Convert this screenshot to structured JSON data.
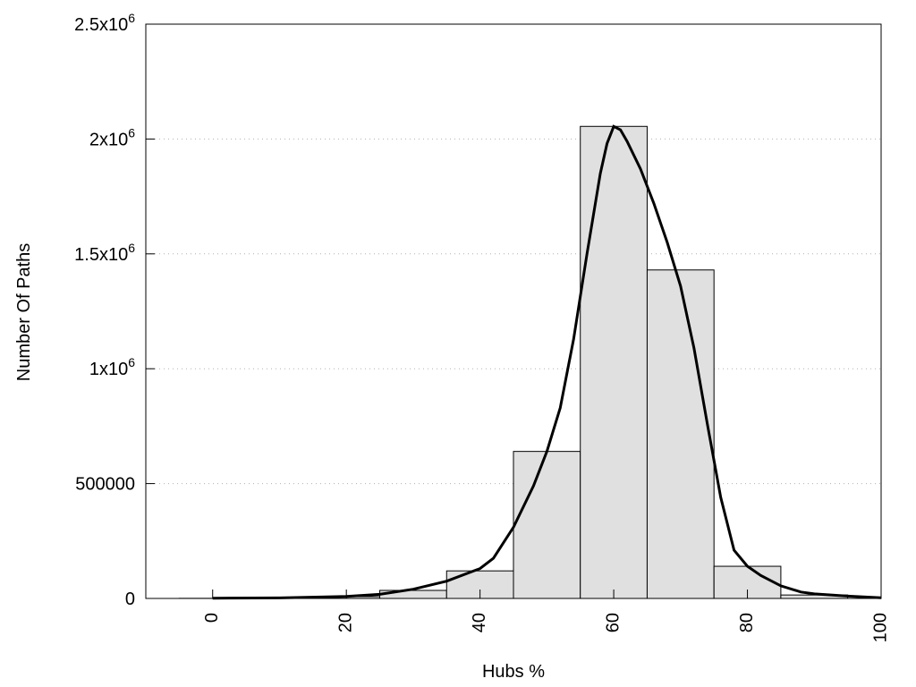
{
  "chart_data": {
    "type": "bar",
    "xlabel": "Hubs %",
    "ylabel": "Number Of Paths",
    "xlim": [
      -10,
      100
    ],
    "ylim": [
      0,
      2500000
    ],
    "x_ticks": [
      0,
      20,
      40,
      60,
      80,
      100
    ],
    "y_ticks": [
      {
        "value": 0,
        "base": "0",
        "sup": ""
      },
      {
        "value": 500000,
        "base": "500000",
        "sup": ""
      },
      {
        "value": 1000000,
        "base": "1x10",
        "sup": "6"
      },
      {
        "value": 1500000,
        "base": "1.5x10",
        "sup": "6"
      },
      {
        "value": 2000000,
        "base": "2x10",
        "sup": "6"
      },
      {
        "value": 2500000,
        "base": "2.5x10",
        "sup": "6"
      }
    ],
    "grid": "horizontal-dotted",
    "bar_width": 10,
    "bars": [
      {
        "x": 0,
        "value": 500
      },
      {
        "x": 10,
        "value": 2000
      },
      {
        "x": 20,
        "value": 8000
      },
      {
        "x": 30,
        "value": 35000
      },
      {
        "x": 40,
        "value": 120000
      },
      {
        "x": 50,
        "value": 640000
      },
      {
        "x": 60,
        "value": 2055000
      },
      {
        "x": 70,
        "value": 1430000
      },
      {
        "x": 80,
        "value": 140000
      },
      {
        "x": 90,
        "value": 15000
      }
    ],
    "curve": {
      "x": [
        0,
        10,
        20,
        25,
        30,
        35,
        40,
        42,
        45,
        48,
        50,
        52,
        54,
        56,
        58,
        59,
        60,
        61,
        62,
        64,
        66,
        68,
        70,
        72,
        74,
        76,
        78,
        80,
        82,
        85,
        88,
        90,
        95,
        100
      ],
      "y": [
        1000,
        2500,
        9000,
        18000,
        40000,
        75000,
        130000,
        175000,
        310000,
        490000,
        640000,
        830000,
        1130000,
        1500000,
        1850000,
        1980000,
        2055000,
        2040000,
        1990000,
        1870000,
        1720000,
        1550000,
        1360000,
        1090000,
        760000,
        440000,
        210000,
        140000,
        100000,
        55000,
        28000,
        20000,
        10000,
        3000
      ]
    },
    "bar_fill": "#e0e0e0",
    "bar_stroke": "#000000",
    "line_color": "#000000"
  }
}
